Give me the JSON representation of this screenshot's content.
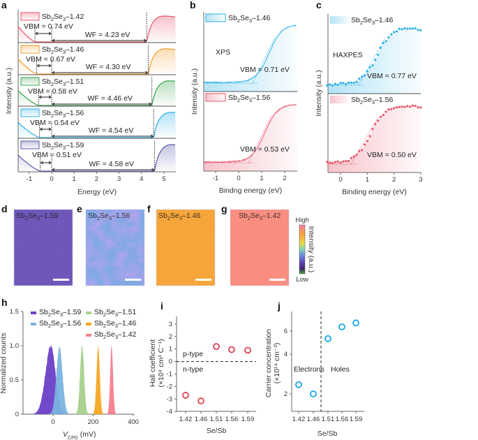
{
  "chart_data": [
    {
      "panel": "a",
      "type": "area",
      "xlabel": "Energy (eV)",
      "ylabel": "Intensity (a.u.)",
      "xlim": [
        -1.5,
        5.5
      ],
      "xticks": [
        "-1",
        "0",
        "1",
        "2",
        "3",
        "4",
        "5"
      ],
      "series": [
        {
          "name": "Sb2Se3–1.42",
          "vbm": 0.74,
          "wf": 4.23,
          "vbm_text": "VBM = 0.74 eV",
          "wf_text": "WF = 4.23 eV",
          "color": "#e8546a"
        },
        {
          "name": "Sb2Se3–1.46",
          "vbm": 0.67,
          "wf": 4.3,
          "vbm_text": "VBM = 0.67 eV",
          "wf_text": "WF = 4.30 eV",
          "color": "#f39a2b"
        },
        {
          "name": "Sb2Se3–1.51",
          "vbm": 0.58,
          "wf": 4.46,
          "vbm_text": "VBM = 0.58 eV",
          "wf_text": "WF = 4.46 eV",
          "color": "#3aa24a"
        },
        {
          "name": "Sb2Se3–1.56",
          "vbm": 0.54,
          "wf": 4.54,
          "vbm_text": "VBM = 0.54 eV",
          "wf_text": "WF = 4.54 eV",
          "color": "#2bb0e6"
        },
        {
          "name": "Sb2Se3–1.59",
          "vbm": 0.51,
          "wf": 4.58,
          "vbm_text": "VBM = 0.51 eV",
          "wf_text": "WF = 4.58 eV",
          "color": "#5a5aa8"
        }
      ]
    },
    {
      "panel": "b",
      "type": "line",
      "xlabel": "Bindng energy (eV)",
      "ylabel": "Intensity (a.u.)",
      "xlim": [
        -1.5,
        2.5
      ],
      "xticks": [
        "-1",
        "0",
        "1",
        "2"
      ],
      "annotation": "XPS",
      "series": [
        {
          "name": "Sb2Se3–1.46",
          "vbm": 0.71,
          "vbm_text": "VBM = 0.71 eV",
          "color": "#2bb0e6"
        },
        {
          "name": "Sb2Se3–1.56",
          "vbm": 0.53,
          "vbm_text": "VBM = 0.53 eV",
          "color": "#e8546a"
        }
      ]
    },
    {
      "panel": "c",
      "type": "scatter",
      "xlabel": "Binding energy (eV)",
      "ylabel": "Intensity (a.u.)",
      "xlim": [
        -0.5,
        3
      ],
      "xticks": [
        "0",
        "1",
        "2",
        "3"
      ],
      "annotation": "HAXPES",
      "series": [
        {
          "name": "Sb2Se3–1.46",
          "vbm": 0.77,
          "vbm_text": "VBM = 0.77 eV",
          "color": "#2bb0e6"
        },
        {
          "name": "Sb2Se3–1.56",
          "vbm": 0.5,
          "vbm_text": "VBM = 0.50 eV",
          "color": "#e8546a"
        }
      ]
    },
    {
      "panel": "h",
      "type": "area",
      "xlabel_main": "V",
      "xlabel_sub": "CPD",
      "xlabel_unit": " (mV)",
      "ylabel": "Normalized counts",
      "xlim": [
        -150,
        400
      ],
      "ylim": [
        0,
        1.5
      ],
      "xticks": [
        "0",
        "200",
        "400"
      ],
      "yticks": [
        "0",
        "0.5",
        "1.0",
        "1.5"
      ],
      "legend": "top",
      "series": [
        {
          "name": "Sb2Se3–1.59",
          "center": -10,
          "sigma": 22,
          "color": "#6a3fc8"
        },
        {
          "name": "Sb2Se3–1.56",
          "center": 32,
          "sigma": 15,
          "color": "#7ab3df"
        },
        {
          "name": "Sb2Se3–1.51",
          "center": 145,
          "sigma": 10,
          "color": "#a8d08d"
        },
        {
          "name": "Sb2Se3–1.46",
          "center": 225,
          "sigma": 8,
          "color": "#f5a623"
        },
        {
          "name": "Sb2Se3–1.42",
          "center": 292,
          "sigma": 7,
          "color": "#f6808f"
        }
      ]
    },
    {
      "panel": "i",
      "type": "scatter",
      "xlabel": "Se/Sb",
      "ylabel_line1": "Hall coefficient",
      "ylabel_line2": "(×10⁴ cm³ C⁻¹)",
      "categories": [
        "1.42",
        "1.46",
        "1.51",
        "1.56",
        "1.59"
      ],
      "values": [
        -2.7,
        -3.15,
        1.2,
        0.95,
        0.9
      ],
      "ylim": [
        -4,
        3.5
      ],
      "yticks": [
        "3",
        "2",
        "1",
        "0",
        "-1",
        "-2",
        "-3",
        "-4"
      ],
      "annotations": [
        "p-type",
        "n-type"
      ],
      "color": "#e0404f"
    },
    {
      "panel": "j",
      "type": "scatter",
      "yscale": "log",
      "xlabel": "Se/Sb",
      "ylabel_line1": "Carrier concentration",
      "ylabel_line2": "(×10¹⁴ cm⁻³)",
      "categories": [
        "1.42",
        "1.46",
        "1.51",
        "1.56",
        "1.59"
      ],
      "values": [
        2.35,
        2.0,
        5.25,
        6.45,
        6.9
      ],
      "ylim": [
        1.5,
        7.8
      ],
      "yticks": [
        "6",
        "4",
        "2"
      ],
      "annotations": [
        "Electrons",
        "Holes"
      ],
      "color": "#1aa6e6"
    }
  ],
  "images": {
    "items": [
      {
        "panel": "d",
        "label": "Sb2Se3–1.59",
        "color": "#5b3fb0"
      },
      {
        "panel": "e",
        "label": "Sb2Se3–1.56",
        "color": "#6f9de0"
      },
      {
        "panel": "f",
        "label": "Sb2Se3–1.46",
        "color": "#f6a233"
      },
      {
        "panel": "g",
        "label": "Sb2Se3–1.42",
        "color": "#f98a7c"
      }
    ],
    "colorbar": {
      "high": "High",
      "low": "Low",
      "label": "Intensity (a.u.)"
    }
  },
  "panel_letters": [
    "a",
    "b",
    "c",
    "d",
    "e",
    "f",
    "g",
    "h",
    "i",
    "j"
  ]
}
